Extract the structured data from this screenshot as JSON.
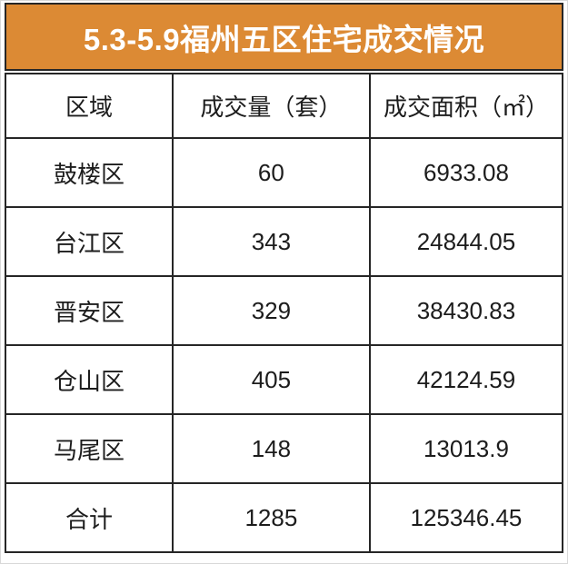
{
  "page": {
    "frame_border_color": "#d8d8d8",
    "background_color": "#ffffff"
  },
  "title": {
    "text": "5.3-5.9福州五区住宅成交情况",
    "bg_color": "#dc8a34",
    "text_color": "#ffffff",
    "border_color": "#262626"
  },
  "table": {
    "border_color": "#262626",
    "columns": [
      "区域",
      "成交量（套）",
      "成交面积（㎡）"
    ],
    "rows": [
      [
        "鼓楼区",
        "60",
        "6933.08"
      ],
      [
        "台江区",
        "343",
        "24844.05"
      ],
      [
        "晋安区",
        "329",
        "38430.83"
      ],
      [
        "仓山区",
        "405",
        "42124.59"
      ],
      [
        "马尾区",
        "148",
        "13013.9"
      ],
      [
        "合计",
        "1285",
        "125346.45"
      ]
    ]
  },
  "chart_data": {
    "type": "table",
    "title": "5.3-5.9福州五区住宅成交情况",
    "columns": [
      "区域",
      "成交量（套）",
      "成交面积（㎡）"
    ],
    "categories": [
      "鼓楼区",
      "台江区",
      "晋安区",
      "仓山区",
      "马尾区"
    ],
    "series": [
      {
        "name": "成交量（套）",
        "values": [
          60,
          343,
          329,
          405,
          148
        ]
      },
      {
        "name": "成交面积（㎡）",
        "values": [
          6933.08,
          24844.05,
          38430.83,
          42124.59,
          13013.9
        ]
      }
    ],
    "totals": {
      "label": "合计",
      "volume": 1285,
      "area": 125346.45
    },
    "layout": {
      "header_bg": "#dc8a34",
      "grid": "solid-black",
      "text_align": "center"
    }
  }
}
